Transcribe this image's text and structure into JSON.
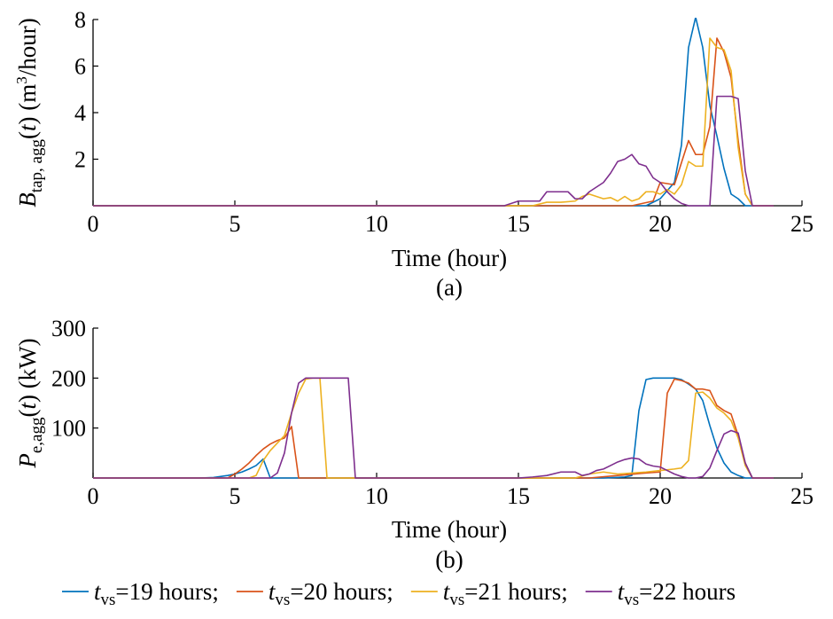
{
  "colors": {
    "tvs19": "#0072bd",
    "tvs20": "#d95319",
    "tvs21": "#edb120",
    "tvs22": "#7e2f8e"
  },
  "legend": [
    {
      "var": "t",
      "sub": "vs",
      "text": "=19 hours;",
      "color": "#0072bd"
    },
    {
      "var": "t",
      "sub": "vs",
      "text": "=20 hours;",
      "color": "#d95319"
    },
    {
      "var": "t",
      "sub": "vs",
      "text": "=21 hours;",
      "color": "#edb120"
    },
    {
      "var": "t",
      "sub": "vs",
      "text": "=22 hours",
      "color": "#7e2f8e"
    }
  ],
  "chart_data": [
    {
      "type": "line",
      "panel": "(a)",
      "xlabel": "Time (hour)",
      "ylabel": {
        "var": "B",
        "sub": "tap, agg",
        "arg": "(t)",
        "unit_pre": " (m",
        "unit_sup": "3",
        "unit_post": "/hour)"
      },
      "xlim": [
        0,
        24
      ],
      "ylim": [
        0,
        8
      ],
      "xticks": [
        0,
        5,
        10,
        15,
        20,
        25
      ],
      "yticks": [
        2,
        4,
        6,
        8
      ],
      "grid": false,
      "series": [
        {
          "name": "tvs=19 hours",
          "color": "#0072bd",
          "points": [
            [
              0,
              0
            ],
            [
              15,
              0
            ],
            [
              19.5,
              0
            ],
            [
              20,
              0.3
            ],
            [
              20.5,
              1.0
            ],
            [
              20.75,
              2.6
            ],
            [
              21,
              6.8
            ],
            [
              21.25,
              8.1
            ],
            [
              21.5,
              6.8
            ],
            [
              21.75,
              4.3
            ],
            [
              22,
              3.0
            ],
            [
              22.25,
              1.6
            ],
            [
              22.5,
              0.5
            ],
            [
              22.75,
              0.3
            ],
            [
              23,
              0
            ],
            [
              24,
              0
            ]
          ]
        },
        {
          "name": "tvs=20 hours",
          "color": "#d95319",
          "points": [
            [
              0,
              0
            ],
            [
              19,
              0
            ],
            [
              19.75,
              0.2
            ],
            [
              20,
              1.0
            ],
            [
              20.5,
              0.9
            ],
            [
              21,
              2.8
            ],
            [
              21.25,
              2.2
            ],
            [
              21.5,
              2.2
            ],
            [
              21.75,
              3.4
            ],
            [
              22,
              7.2
            ],
            [
              22.25,
              6.6
            ],
            [
              22.5,
              5.5
            ],
            [
              22.75,
              2.8
            ],
            [
              23,
              0.5
            ],
            [
              23.25,
              0
            ],
            [
              24,
              0
            ]
          ]
        },
        {
          "name": "tvs=21 hours",
          "color": "#edb120",
          "points": [
            [
              0,
              0
            ],
            [
              15,
              0
            ],
            [
              15.5,
              0
            ],
            [
              16,
              0.15
            ],
            [
              16.5,
              0.15
            ],
            [
              17,
              0.2
            ],
            [
              17.25,
              0.4
            ],
            [
              17.5,
              0.5
            ],
            [
              17.75,
              0.4
            ],
            [
              18,
              0.3
            ],
            [
              18.25,
              0.35
            ],
            [
              18.5,
              0.2
            ],
            [
              18.75,
              0.4
            ],
            [
              19,
              0.2
            ],
            [
              19.25,
              0.3
            ],
            [
              19.5,
              0.6
            ],
            [
              19.75,
              0.6
            ],
            [
              20,
              0.5
            ],
            [
              20.25,
              0.7
            ],
            [
              20.5,
              0.5
            ],
            [
              20.75,
              0.9
            ],
            [
              21,
              1.9
            ],
            [
              21.25,
              1.7
            ],
            [
              21.5,
              1.7
            ],
            [
              21.75,
              7.2
            ],
            [
              22,
              6.8
            ],
            [
              22.25,
              6.7
            ],
            [
              22.5,
              5.8
            ],
            [
              22.75,
              2.5
            ],
            [
              23,
              0.5
            ],
            [
              23.25,
              0
            ],
            [
              24,
              0
            ]
          ]
        },
        {
          "name": "tvs=22 hours",
          "color": "#7e2f8e",
          "points": [
            [
              0,
              0
            ],
            [
              14.5,
              0
            ],
            [
              15,
              0.2
            ],
            [
              15.75,
              0.2
            ],
            [
              16,
              0.6
            ],
            [
              16.75,
              0.6
            ],
            [
              17,
              0.3
            ],
            [
              17.25,
              0.3
            ],
            [
              17.5,
              0.6
            ],
            [
              17.75,
              0.8
            ],
            [
              18,
              1.0
            ],
            [
              18.25,
              1.4
            ],
            [
              18.5,
              1.9
            ],
            [
              18.75,
              2.0
            ],
            [
              19,
              2.2
            ],
            [
              19.25,
              1.8
            ],
            [
              19.5,
              1.7
            ],
            [
              19.75,
              1.2
            ],
            [
              20,
              1.0
            ],
            [
              20.25,
              0.6
            ],
            [
              20.5,
              0.3
            ],
            [
              20.75,
              0.1
            ],
            [
              21,
              0
            ],
            [
              21.75,
              0
            ],
            [
              22,
              4.7
            ],
            [
              22.5,
              4.7
            ],
            [
              22.75,
              4.6
            ],
            [
              23,
              1.5
            ],
            [
              23.25,
              0
            ],
            [
              24,
              0
            ]
          ]
        }
      ]
    },
    {
      "type": "line",
      "panel": "(b)",
      "xlabel": "Time (hour)",
      "ylabel": {
        "var": "P",
        "sub": "e,agg",
        "arg": "(t)",
        "unit_pre": " (kW)",
        "unit_sup": "",
        "unit_post": ""
      },
      "xlim": [
        0,
        24
      ],
      "ylim": [
        0,
        300
      ],
      "xticks": [
        0,
        5,
        10,
        15,
        20,
        25
      ],
      "yticks": [
        100,
        200,
        300
      ],
      "grid": false,
      "series": [
        {
          "name": "tvs=19 hours",
          "color": "#0072bd",
          "points": [
            [
              0,
              0
            ],
            [
              3.75,
              0
            ],
            [
              4.25,
              1
            ],
            [
              4.75,
              5
            ],
            [
              5,
              8
            ],
            [
              5.25,
              12
            ],
            [
              5.5,
              18
            ],
            [
              5.75,
              25
            ],
            [
              6,
              38
            ],
            [
              6.25,
              0
            ],
            [
              18,
              0
            ],
            [
              18.75,
              2
            ],
            [
              19,
              5
            ],
            [
              19.25,
              135
            ],
            [
              19.5,
              197
            ],
            [
              19.75,
              200
            ],
            [
              20.5,
              200
            ],
            [
              20.75,
              197
            ],
            [
              21,
              188
            ],
            [
              21.25,
              178
            ],
            [
              21.5,
              155
            ],
            [
              21.75,
              105
            ],
            [
              22,
              60
            ],
            [
              22.25,
              30
            ],
            [
              22.5,
              12
            ],
            [
              22.75,
              5
            ],
            [
              23,
              0
            ],
            [
              24,
              0
            ]
          ]
        },
        {
          "name": "tvs=20 hours",
          "color": "#d95319",
          "points": [
            [
              0,
              0
            ],
            [
              4.75,
              0
            ],
            [
              5,
              8
            ],
            [
              5.25,
              18
            ],
            [
              5.5,
              30
            ],
            [
              5.75,
              45
            ],
            [
              6,
              58
            ],
            [
              6.25,
              68
            ],
            [
              6.5,
              75
            ],
            [
              6.75,
              80
            ],
            [
              7,
              103
            ],
            [
              7.25,
              0
            ],
            [
              17.5,
              0
            ],
            [
              18.5,
              5
            ],
            [
              19.5,
              10
            ],
            [
              20,
              12
            ],
            [
              20.25,
              170
            ],
            [
              20.5,
              198
            ],
            [
              20.75,
              195
            ],
            [
              21,
              190
            ],
            [
              21.25,
              178
            ],
            [
              21.5,
              178
            ],
            [
              21.75,
              175
            ],
            [
              22,
              145
            ],
            [
              22.25,
              135
            ],
            [
              22.5,
              128
            ],
            [
              22.75,
              85
            ],
            [
              23,
              30
            ],
            [
              23.25,
              0
            ],
            [
              24,
              0
            ]
          ]
        },
        {
          "name": "tvs=21 hours",
          "color": "#edb120",
          "points": [
            [
              0,
              0
            ],
            [
              5.5,
              0
            ],
            [
              5.75,
              5
            ],
            [
              6,
              35
            ],
            [
              6.25,
              55
            ],
            [
              6.5,
              70
            ],
            [
              6.75,
              85
            ],
            [
              7,
              130
            ],
            [
              7.25,
              170
            ],
            [
              7.5,
              198
            ],
            [
              7.75,
              200
            ],
            [
              8,
              200
            ],
            [
              8.25,
              0
            ],
            [
              17,
              0
            ],
            [
              17.5,
              8
            ],
            [
              18,
              12
            ],
            [
              18.5,
              8
            ],
            [
              19,
              10
            ],
            [
              19.5,
              12
            ],
            [
              20,
              15
            ],
            [
              20.5,
              18
            ],
            [
              20.75,
              20
            ],
            [
              21,
              35
            ],
            [
              21.25,
              170
            ],
            [
              21.5,
              172
            ],
            [
              21.75,
              160
            ],
            [
              22,
              140
            ],
            [
              22.25,
              130
            ],
            [
              22.5,
              115
            ],
            [
              22.75,
              80
            ],
            [
              23,
              25
            ],
            [
              23.25,
              0
            ],
            [
              24,
              0
            ]
          ]
        },
        {
          "name": "tvs=22 hours",
          "color": "#7e2f8e",
          "points": [
            [
              0,
              0
            ],
            [
              6.25,
              0
            ],
            [
              6.5,
              10
            ],
            [
              6.75,
              50
            ],
            [
              7,
              130
            ],
            [
              7.25,
              190
            ],
            [
              7.5,
              200
            ],
            [
              9,
              200
            ],
            [
              9.25,
              0
            ],
            [
              15,
              0
            ],
            [
              15.5,
              2
            ],
            [
              16,
              5
            ],
            [
              16.5,
              12
            ],
            [
              17,
              12
            ],
            [
              17.25,
              5
            ],
            [
              17.5,
              8
            ],
            [
              17.75,
              15
            ],
            [
              18,
              18
            ],
            [
              18.25,
              25
            ],
            [
              18.5,
              32
            ],
            [
              18.75,
              37
            ],
            [
              19,
              40
            ],
            [
              19.25,
              38
            ],
            [
              19.5,
              28
            ],
            [
              19.75,
              24
            ],
            [
              20,
              22
            ],
            [
              20.25,
              15
            ],
            [
              20.5,
              8
            ],
            [
              20.75,
              3
            ],
            [
              21,
              0
            ],
            [
              21.25,
              0
            ],
            [
              21.5,
              3
            ],
            [
              21.75,
              20
            ],
            [
              22,
              55
            ],
            [
              22.25,
              88
            ],
            [
              22.5,
              95
            ],
            [
              22.75,
              90
            ],
            [
              23,
              30
            ],
            [
              23.25,
              0
            ],
            [
              24,
              0
            ]
          ]
        }
      ]
    }
  ]
}
